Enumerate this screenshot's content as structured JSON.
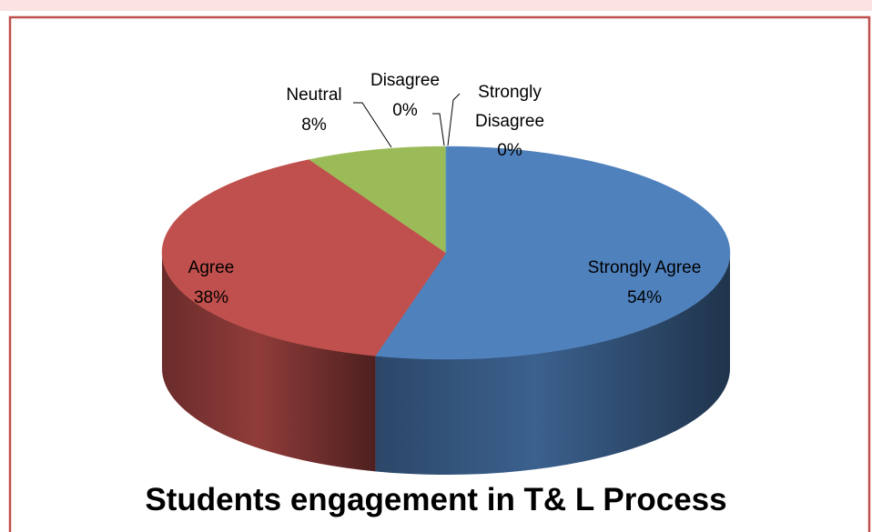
{
  "chart_data": {
    "type": "pie3d",
    "title": "Students engagement in T& L Process",
    "categories": [
      "Strongly Agree",
      "Agree",
      "Neutral",
      "Disagree",
      "Strongly Disagree"
    ],
    "values": [
      54,
      38,
      8,
      0,
      0
    ],
    "value_labels": [
      "54%",
      "38%",
      "8%",
      "0%",
      "0%"
    ],
    "colors": [
      "#4f81bd",
      "#c0504d",
      "#9bbb59",
      "#8064a2",
      "#4bacc6"
    ]
  }
}
